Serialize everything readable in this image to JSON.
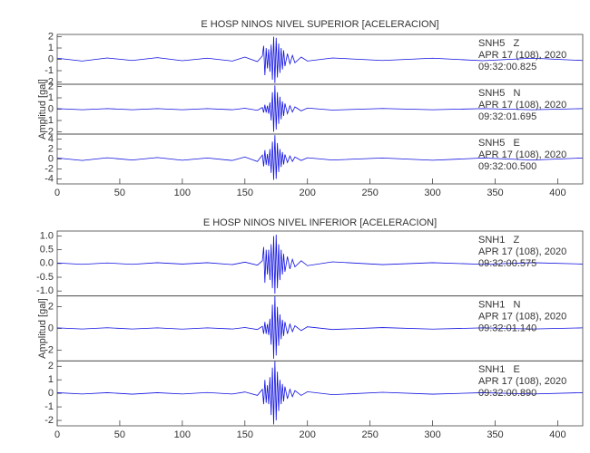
{
  "chart_data": [
    {
      "type": "seismogram",
      "title": "E HOSP NINOS NIVEL SUPERIOR [ACELERACION]",
      "ylabel": "Amplitud [gal]",
      "xlim": [
        0,
        420
      ],
      "xticks": [
        0,
        50,
        100,
        150,
        200,
        250,
        300,
        350,
        400
      ],
      "color": "#1010e0",
      "panels": [
        {
          "annotation": [
            "SNH5   Z",
            "APR 17 (108), 2020",
            "09:32:00.825"
          ],
          "ylim": [
            -2.2,
            2.2
          ],
          "yticks": [
            2,
            1,
            0,
            -1,
            -2
          ],
          "x": [
            0,
            20,
            40,
            60,
            80,
            100,
            120,
            140,
            150,
            160,
            164,
            165,
            166,
            167,
            168,
            169,
            170,
            171,
            172,
            173,
            174,
            175,
            176,
            177,
            178,
            179,
            180,
            181,
            182,
            184,
            186,
            188,
            190,
            195,
            200,
            220,
            260,
            300,
            340,
            380,
            420
          ],
          "values": [
            0.1,
            -0.15,
            0.12,
            -0.1,
            0.15,
            -0.12,
            0.1,
            -0.15,
            0.2,
            -0.2,
            0.3,
            1.2,
            -1.4,
            1.0,
            -0.8,
            0.9,
            -1.1,
            1.3,
            -1.8,
            2.0,
            -2.1,
            1.9,
            -1.6,
            1.4,
            -1.2,
            1.0,
            -0.9,
            0.8,
            -0.6,
            0.5,
            -0.4,
            0.35,
            -0.3,
            0.2,
            -0.15,
            0.12,
            -0.1,
            0.1,
            -0.12,
            0.1,
            -0.1
          ]
        },
        {
          "annotation": [
            "SNH5   N",
            "APR 17 (108), 2020",
            "09:32:01.695"
          ],
          "ylim": [
            -2.2,
            2.2
          ],
          "yticks": [
            2,
            1,
            0,
            -1,
            -2
          ],
          "x": [
            0,
            20,
            40,
            60,
            80,
            100,
            120,
            140,
            150,
            160,
            164,
            165,
            166,
            167,
            168,
            169,
            170,
            171,
            172,
            173,
            174,
            175,
            176,
            177,
            178,
            179,
            180,
            181,
            182,
            184,
            186,
            188,
            190,
            195,
            200,
            220,
            260,
            300,
            340,
            380,
            420
          ],
          "values": [
            0.05,
            -0.05,
            0.05,
            -0.05,
            0.05,
            -0.05,
            0.05,
            -0.05,
            0.08,
            -0.1,
            0.15,
            -0.3,
            0.4,
            -0.3,
            0.3,
            -0.4,
            0.6,
            -1.0,
            1.5,
            -2.0,
            2.1,
            -1.8,
            1.5,
            -1.3,
            1.1,
            -0.9,
            0.7,
            -0.6,
            0.5,
            -0.4,
            0.3,
            -0.25,
            0.2,
            -0.15,
            0.1,
            -0.08,
            0.06,
            -0.05,
            0.05,
            -0.05,
            0.05
          ]
        },
        {
          "annotation": [
            "SNH5   E",
            "APR 17 (108), 2020",
            "09:32:00.500"
          ],
          "ylim": [
            -5,
            5
          ],
          "yticks": [
            4,
            2,
            0,
            -2,
            -4
          ],
          "x": [
            0,
            20,
            40,
            60,
            80,
            100,
            120,
            140,
            150,
            160,
            164,
            165,
            166,
            167,
            168,
            169,
            170,
            171,
            172,
            173,
            174,
            175,
            176,
            177,
            178,
            179,
            180,
            181,
            182,
            184,
            186,
            188,
            190,
            195,
            200,
            220,
            260,
            300,
            340,
            380,
            420
          ],
          "values": [
            0.2,
            -0.3,
            0.25,
            -0.2,
            0.3,
            -0.25,
            0.2,
            -0.3,
            0.4,
            -0.5,
            0.8,
            -1.5,
            1.8,
            -1.2,
            1.0,
            -1.4,
            2.0,
            -2.8,
            3.5,
            -4.2,
            4.8,
            -4.0,
            3.2,
            -2.6,
            2.0,
            -1.6,
            1.4,
            -1.1,
            0.9,
            -0.7,
            0.6,
            -0.5,
            0.4,
            -0.3,
            0.25,
            -0.2,
            0.2,
            -0.25,
            0.2,
            -0.2,
            0.2
          ]
        }
      ]
    },
    {
      "type": "seismogram",
      "title": "E HOSP NINOS NIVEL INFERIOR [ACELERACION]",
      "ylabel": "Amplitud [gal]",
      "xlim": [
        0,
        420
      ],
      "xticks": [
        0,
        50,
        100,
        150,
        200,
        250,
        300,
        350,
        400
      ],
      "color": "#1010e0",
      "panels": [
        {
          "annotation": [
            "SNH1   Z",
            "APR 17 (108), 2020",
            "09:32:00.575"
          ],
          "ylim": [
            -1.18,
            1.18
          ],
          "yticks": [
            {
              "value": 1,
              "label": "1.0"
            },
            {
              "value": 0.5,
              "label": "0.5"
            },
            {
              "value": 0,
              "label": "0.0"
            },
            {
              "value": -0.5,
              "label": "-0.5"
            },
            {
              "value": -1,
              "label": "-1.0"
            }
          ],
          "x": [
            0,
            20,
            40,
            60,
            80,
            100,
            120,
            140,
            150,
            160,
            164,
            165,
            166,
            167,
            168,
            169,
            170,
            171,
            172,
            173,
            174,
            175,
            176,
            177,
            178,
            179,
            180,
            181,
            182,
            184,
            186,
            188,
            190,
            195,
            200,
            220,
            260,
            300,
            340,
            380,
            420
          ],
          "values": [
            0.02,
            -0.03,
            0.02,
            -0.03,
            0.03,
            -0.02,
            0.03,
            -0.04,
            0.05,
            -0.06,
            0.1,
            0.6,
            -0.7,
            0.5,
            -0.4,
            0.5,
            -0.6,
            0.7,
            -0.9,
            1.0,
            -1.1,
            1.05,
            -0.9,
            0.7,
            -0.6,
            0.5,
            -0.4,
            0.35,
            -0.3,
            0.25,
            -0.2,
            0.15,
            -0.12,
            0.1,
            -0.08,
            0.06,
            -0.04,
            0.03,
            -0.03,
            0.03,
            -0.02
          ]
        },
        {
          "annotation": [
            "SNH1   N",
            "APR 17 (108), 2020",
            "09:32:01.140"
          ],
          "ylim": [
            -3,
            3
          ],
          "yticks": [
            2,
            0,
            -2
          ],
          "x": [
            0,
            20,
            40,
            60,
            80,
            100,
            120,
            140,
            150,
            160,
            164,
            165,
            166,
            167,
            168,
            169,
            170,
            171,
            172,
            173,
            174,
            175,
            176,
            177,
            178,
            179,
            180,
            181,
            182,
            184,
            186,
            188,
            190,
            195,
            200,
            220,
            260,
            300,
            340,
            380,
            420
          ],
          "values": [
            0.05,
            -0.05,
            0.06,
            -0.05,
            0.05,
            -0.06,
            0.05,
            -0.05,
            0.08,
            -0.1,
            0.2,
            -0.5,
            0.6,
            -0.5,
            0.4,
            -0.6,
            0.9,
            -1.5,
            2.2,
            -2.8,
            3.0,
            -2.5,
            2.0,
            -1.6,
            1.3,
            -1.0,
            0.8,
            -0.7,
            0.6,
            -0.5,
            0.4,
            -0.3,
            0.25,
            -0.2,
            0.15,
            -0.1,
            0.08,
            -0.06,
            0.05,
            -0.05,
            0.05
          ]
        },
        {
          "annotation": [
            "SNH1   E",
            "APR 17 (108), 2020",
            "09:32:00.890"
          ],
          "ylim": [
            -2.4,
            2.4
          ],
          "yticks": [
            2,
            1,
            0,
            -1,
            -2
          ],
          "x": [
            0,
            20,
            40,
            60,
            80,
            100,
            120,
            140,
            150,
            160,
            164,
            165,
            166,
            167,
            168,
            169,
            170,
            171,
            172,
            173,
            174,
            175,
            176,
            177,
            178,
            179,
            180,
            181,
            182,
            184,
            186,
            188,
            190,
            195,
            200,
            220,
            260,
            300,
            340,
            380,
            420
          ],
          "values": [
            0.05,
            -0.05,
            0.05,
            -0.06,
            0.05,
            -0.05,
            0.06,
            -0.05,
            0.1,
            -0.15,
            0.3,
            -0.8,
            1.0,
            -0.7,
            0.6,
            -0.8,
            1.2,
            -1.6,
            1.9,
            -2.3,
            2.4,
            -2.0,
            1.6,
            -1.3,
            1.0,
            -0.8,
            0.7,
            -0.6,
            0.5,
            -0.4,
            0.3,
            -0.25,
            0.2,
            -0.15,
            0.12,
            -0.1,
            0.08,
            -0.06,
            0.05,
            -0.05,
            0.05
          ]
        }
      ]
    }
  ]
}
